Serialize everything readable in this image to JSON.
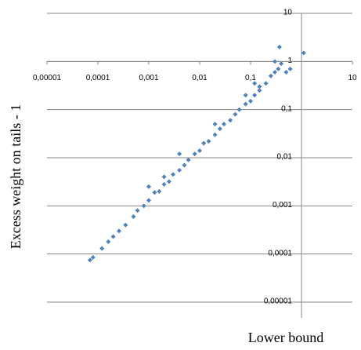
{
  "chart_data": {
    "type": "scatter",
    "log_x": true,
    "log_y": true,
    "grid": true,
    "x_label": "Lower bound",
    "y_label": "Excess  weight on tails - 1",
    "color": "#4f81bd",
    "xlim": [
      1e-05,
      10
    ],
    "ylim": [
      1e-05,
      10
    ],
    "x_axis_crosses_at": 1,
    "y_axis_crosses_at": 1,
    "xticks": [
      {
        "value": 1e-05,
        "label": "0,00001"
      },
      {
        "value": 0.0001,
        "label": "0,0001"
      },
      {
        "value": 0.001,
        "label": "0,001"
      },
      {
        "value": 0.01,
        "label": "0,01"
      },
      {
        "value": 0.1,
        "label": "0,1"
      },
      10
    ],
    "yticks": [
      {
        "value": 1e-05,
        "label": "0,00001"
      },
      {
        "value": 0.0001,
        "label": "0,0001"
      },
      {
        "value": 0.001,
        "label": "0,001"
      },
      {
        "value": 0.01,
        "label": "0,01"
      },
      {
        "value": 0.1,
        "label": "0,1"
      },
      1,
      10
    ],
    "x": [
      7e-05,
      8e-05,
      0.00012,
      0.00016,
      0.0002,
      0.00026,
      0.00035,
      0.0005,
      0.0006,
      0.0008,
      0.001,
      0.0013,
      0.0016,
      0.002,
      0.0025,
      0.003,
      0.004,
      0.005,
      0.006,
      0.008,
      0.01,
      0.012,
      0.015,
      0.02,
      0.025,
      0.03,
      0.04,
      0.05,
      0.06,
      0.08,
      0.1,
      0.12,
      0.15,
      0.2,
      0.25,
      0.3,
      0.35,
      0.4,
      0.3,
      0.37,
      1.1,
      0.5,
      0.12,
      0.002,
      0.02,
      0.001,
      0.004,
      0.08,
      0.15,
      0.6
    ],
    "y": [
      7.5e-05,
      8.5e-05,
      0.00013,
      0.00018,
      0.00023,
      0.0003,
      0.0004,
      0.0006,
      0.0008,
      0.001,
      0.0013,
      0.0019,
      0.002,
      0.0028,
      0.0032,
      0.0045,
      0.0055,
      0.007,
      0.009,
      0.012,
      0.014,
      0.02,
      0.022,
      0.03,
      0.04,
      0.05,
      0.06,
      0.08,
      0.1,
      0.13,
      0.15,
      0.2,
      0.25,
      0.35,
      0.5,
      0.6,
      0.7,
      0.9,
      1.0,
      2.0,
      1.5,
      0.6,
      0.35,
      0.004,
      0.05,
      0.0025,
      0.012,
      0.2,
      0.3,
      0.7
    ]
  }
}
